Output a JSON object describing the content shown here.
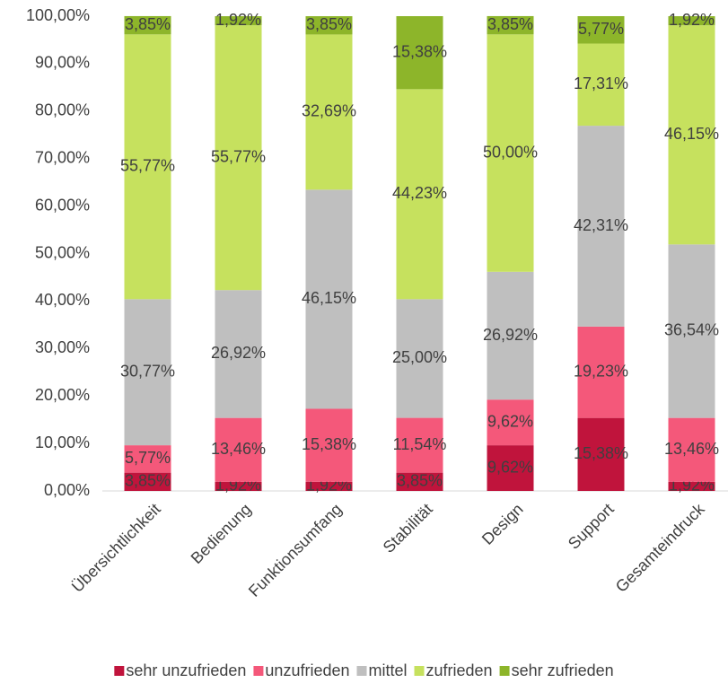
{
  "chart_data": {
    "type": "stacked_bar",
    "categories": [
      "Übersichtlichkeit",
      "Bedienung",
      "Funktionsumfang",
      "Stabilität",
      "Design",
      "Support",
      "Gesamteindruck"
    ],
    "series": [
      {
        "name": "sehr unzufrieden",
        "color": "#c0143c",
        "values": [
          3.85,
          1.92,
          1.92,
          3.85,
          9.62,
          15.38,
          1.92
        ],
        "value_labels": [
          "3,85%",
          "1,92%",
          "1,92%",
          "3,85%",
          "9,62%",
          "15,38%",
          "1,92%"
        ]
      },
      {
        "name": "unzufrieden",
        "color": "#f4587a",
        "values": [
          5.77,
          13.46,
          15.38,
          11.54,
          9.62,
          19.23,
          13.46
        ],
        "value_labels": [
          "5,77%",
          "13,46%",
          "15,38%",
          "11,54%",
          "9,62%",
          "19,23%",
          "13,46%"
        ]
      },
      {
        "name": "mittel",
        "color": "#bfbfbf",
        "values": [
          30.77,
          26.92,
          46.15,
          25.0,
          26.92,
          42.31,
          36.54
        ],
        "value_labels": [
          "30,77%",
          "26,92%",
          "46,15%",
          "25,00%",
          "26,92%",
          "42,31%",
          "36,54%"
        ]
      },
      {
        "name": "zufrieden",
        "color": "#c6e15e",
        "values": [
          55.77,
          55.77,
          32.69,
          44.23,
          50.0,
          17.31,
          46.15
        ],
        "value_labels": [
          "55,77%",
          "55,77%",
          "32,69%",
          "44,23%",
          "50,00%",
          "17,31%",
          "46,15%"
        ]
      },
      {
        "name": "sehr zufrieden",
        "color": "#8db52a",
        "values": [
          3.85,
          1.92,
          3.85,
          15.38,
          3.85,
          5.77,
          1.92
        ],
        "value_labels": [
          "3,85%",
          "1,92%",
          "3,85%",
          "15,38%",
          "3,85%",
          "5,77%",
          "1,92%"
        ]
      }
    ],
    "ylim": [
      0,
      100
    ],
    "yticks": [
      {
        "value": 0,
        "label": "0,00%"
      },
      {
        "value": 10,
        "label": "10,00%"
      },
      {
        "value": 20,
        "label": "20,00%"
      },
      {
        "value": 30,
        "label": "30,00%"
      },
      {
        "value": 40,
        "label": "40,00%"
      },
      {
        "value": 50,
        "label": "50,00%"
      },
      {
        "value": 60,
        "label": "60,00%"
      },
      {
        "value": 70,
        "label": "70,00%"
      },
      {
        "value": 80,
        "label": "80,00%"
      },
      {
        "value": 90,
        "label": "90,00%"
      },
      {
        "value": 100,
        "label": "100,00%"
      }
    ],
    "legend": "bottom"
  }
}
